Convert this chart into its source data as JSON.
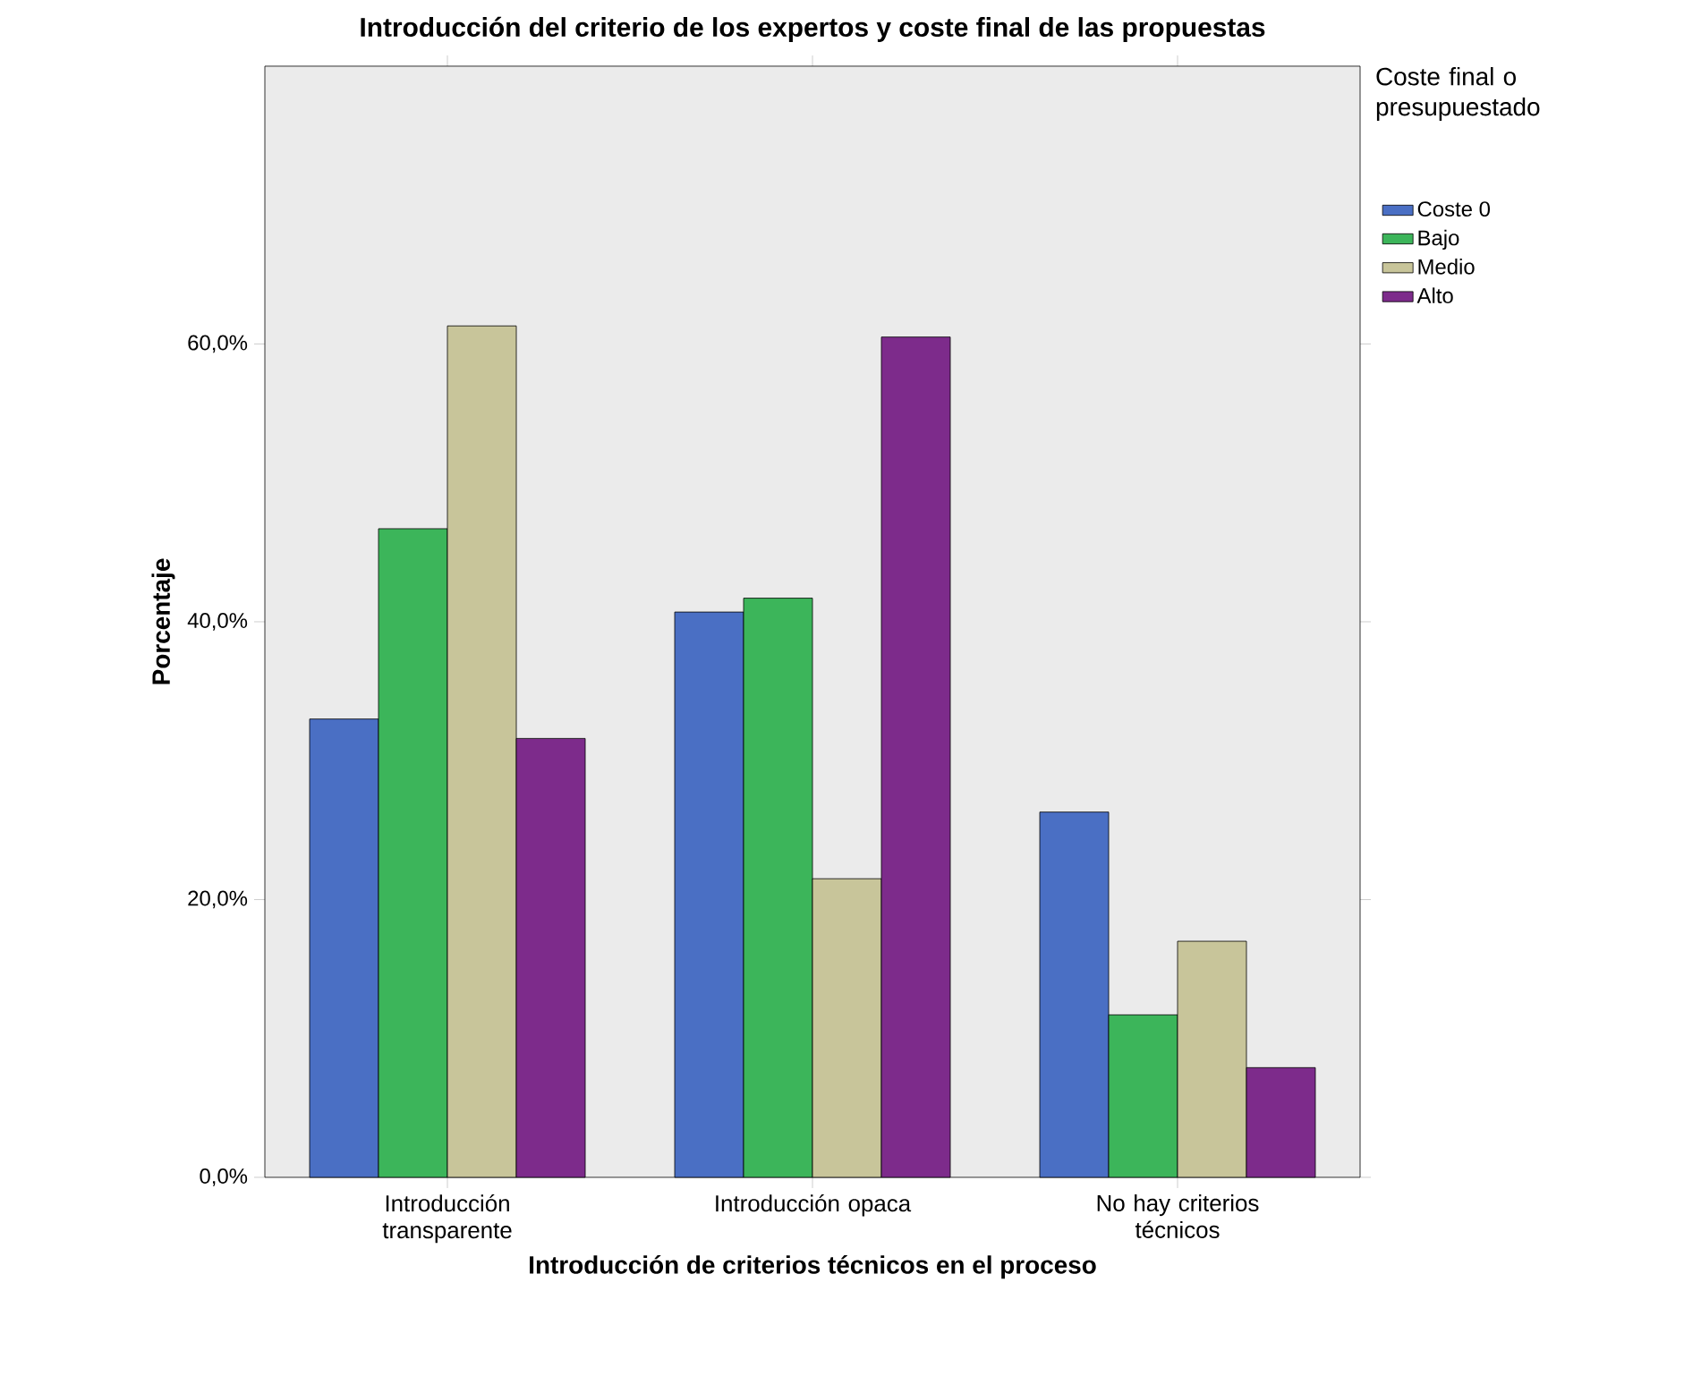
{
  "chart_data": {
    "type": "bar",
    "title": "Introducción del criterio de los expertos y coste final de las propuestas",
    "xlabel": "Introducción de criterios técnicos en el proceso",
    "ylabel": "Porcentaje",
    "legend_title": "Coste final o presupuestado",
    "categories": [
      "Introducción transparente",
      "Introducción opaca",
      "No hay criterios técnicos"
    ],
    "series": [
      {
        "name": "Coste 0",
        "color": "#4a6fc4",
        "values": [
          33.0,
          40.7,
          26.3
        ]
      },
      {
        "name": "Bajo",
        "color": "#3cb55a",
        "values": [
          46.7,
          41.7,
          11.7
        ]
      },
      {
        "name": "Medio",
        "color": "#c8c59a",
        "values": [
          61.3,
          21.5,
          17.0
        ]
      },
      {
        "name": "Alto",
        "color": "#7d2b8b",
        "values": [
          31.6,
          60.5,
          7.9
        ]
      }
    ],
    "ylim": [
      0,
      80
    ],
    "yticks": [
      {
        "value": 0,
        "label": "0,0%"
      },
      {
        "value": 20,
        "label": "20,0%"
      },
      {
        "value": 40,
        "label": "40,0%"
      },
      {
        "value": 60,
        "label": "60,0%"
      }
    ],
    "legend": "top right",
    "grid": false
  }
}
